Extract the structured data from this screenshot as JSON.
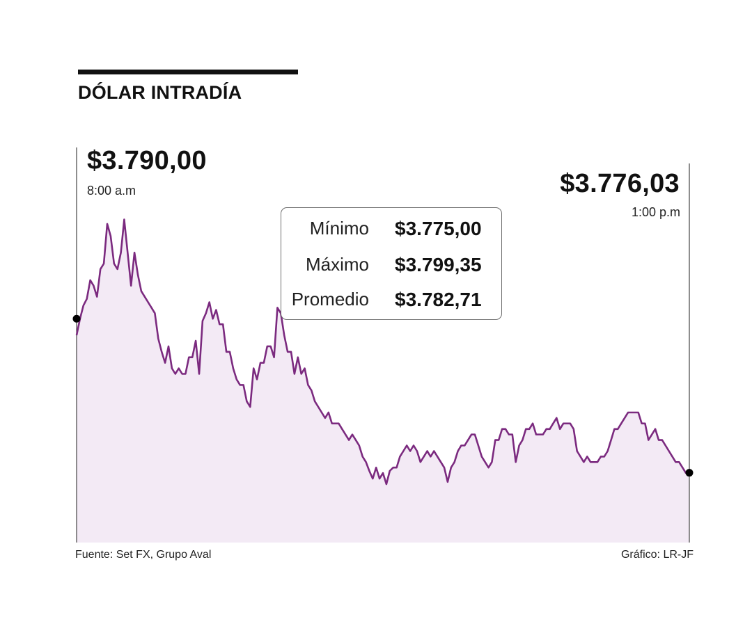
{
  "title": "DÓLAR INTRADÍA",
  "colors": {
    "line": "#7b2a7f",
    "fill": "#f3eaf5",
    "text": "#111111"
  },
  "open": {
    "price": "$3.790,00",
    "time": "8:00 a.m"
  },
  "close": {
    "price": "$3.776,03",
    "time": "1:00 p.m"
  },
  "stats": [
    {
      "label": "Mínimo",
      "value": "$3.775,00"
    },
    {
      "label": "Máximo",
      "value": "$3.799,35"
    },
    {
      "label": "Promedio",
      "value": "$3.782,71"
    }
  ],
  "footer": {
    "source": "Fuente:  Set FX, Grupo Aval",
    "credit": "Gráfico: LR-JF"
  },
  "chart_data": {
    "type": "area",
    "title": "DÓLAR INTRADÍA",
    "x_start": "8:00 a.m",
    "x_end": "1:00 p.m",
    "ylim": [
      3775,
      3799.35
    ],
    "grid": false,
    "series": [
      {
        "values": [
          3788.5,
          3790.0,
          3791.2,
          3791.8,
          3793.5,
          3793.0,
          3792.0,
          3794.5,
          3795.0,
          3798.6,
          3797.5,
          3795.0,
          3794.5,
          3796.0,
          3799.0,
          3796.0,
          3793.0,
          3796.0,
          3794.0,
          3792.5,
          3792.0,
          3791.5,
          3791.0,
          3790.5,
          3788.2,
          3787.0,
          3786.0,
          3787.5,
          3785.5,
          3785.0,
          3785.5,
          3785.0,
          3785.0,
          3786.5,
          3786.5,
          3788.0,
          3785.0,
          3789.8,
          3790.5,
          3791.5,
          3790.0,
          3790.8,
          3789.5,
          3789.5,
          3787.0,
          3787.0,
          3785.5,
          3784.5,
          3784.0,
          3784.0,
          3782.5,
          3782.0,
          3785.5,
          3784.5,
          3786.0,
          3786.0,
          3787.5,
          3787.5,
          3786.5,
          3791.0,
          3790.5,
          3788.5,
          3787.0,
          3787.0,
          3785.0,
          3786.5,
          3785.0,
          3785.5,
          3784.0,
          3783.5,
          3782.5,
          3782.0,
          3781.5,
          3781.0,
          3781.5,
          3780.5,
          3780.5,
          3780.5,
          3780.0,
          3779.5,
          3779.0,
          3779.5,
          3779.0,
          3778.5,
          3777.5,
          3777.0,
          3776.2,
          3775.5,
          3776.5,
          3775.5,
          3776.0,
          3775.0,
          3776.2,
          3776.5,
          3776.5,
          3777.5,
          3778.0,
          3778.5,
          3778.0,
          3778.5,
          3778.0,
          3777.0,
          3777.5,
          3778.0,
          3777.5,
          3778.0,
          3777.5,
          3777.0,
          3776.5,
          3775.2,
          3776.5,
          3777.0,
          3778.0,
          3778.5,
          3778.5,
          3779.0,
          3779.5,
          3779.5,
          3778.5,
          3777.5,
          3777.0,
          3776.5,
          3777.0,
          3779.0,
          3779.0,
          3780.0,
          3780.0,
          3779.5,
          3779.5,
          3777.0,
          3778.5,
          3779.0,
          3780.0,
          3780.0,
          3780.5,
          3779.5,
          3779.5,
          3779.5,
          3780.0,
          3780.0,
          3780.5,
          3781.0,
          3780.0,
          3780.5,
          3780.5,
          3780.5,
          3780.0,
          3778.0,
          3777.5,
          3777.0,
          3777.5,
          3777.0,
          3777.0,
          3777.0,
          3777.5,
          3777.5,
          3778.0,
          3779.0,
          3780.0,
          3780.0,
          3780.5,
          3781.0,
          3781.5,
          3781.5,
          3781.5,
          3781.5,
          3780.5,
          3780.5,
          3779.0,
          3779.5,
          3780.0,
          3779.0,
          3779.0,
          3778.5,
          3778.0,
          3777.5,
          3777.0,
          3777.0,
          3776.5,
          3776.0,
          3776.2
        ],
        "note": "values sampled left-to-right across the session"
      }
    ]
  }
}
